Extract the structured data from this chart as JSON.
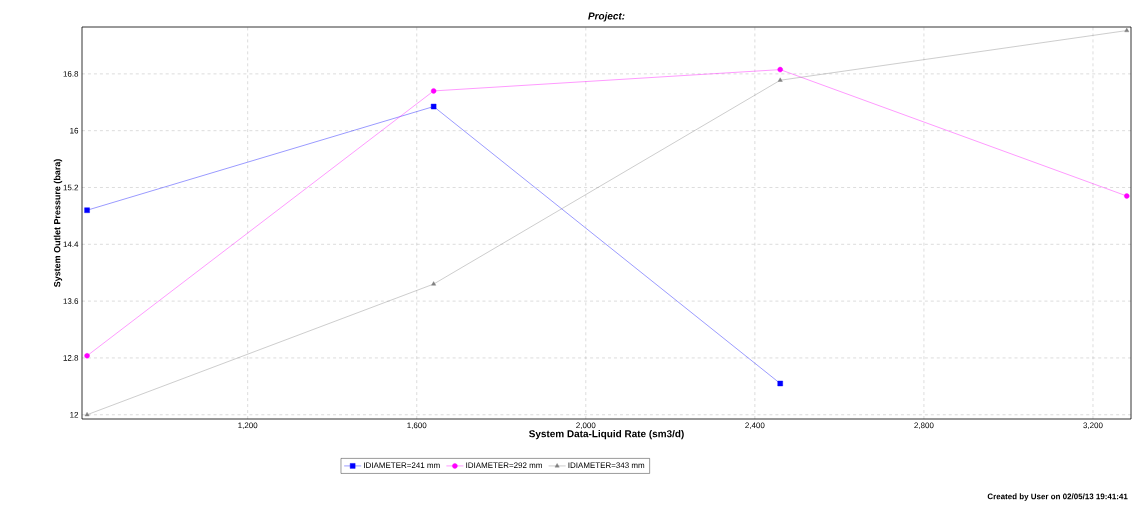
{
  "chart_data": {
    "type": "line",
    "title": "Project:",
    "xlabel": "System Data-Liquid Rate (sm3/d)",
    "ylabel": "System Outlet Pressure (bara)",
    "x": [
      820,
      1640,
      2460,
      3280
    ],
    "series": [
      {
        "name": "IDIAMETER=241 mm",
        "color": "#0000ff",
        "marker": "square",
        "values": [
          14.88,
          16.34,
          12.44,
          null
        ]
      },
      {
        "name": "IDIAMETER=292 mm",
        "color": "#ff00ff",
        "marker": "circle",
        "values": [
          12.83,
          16.56,
          16.86,
          15.08
        ]
      },
      {
        "name": "IDIAMETER=343 mm",
        "color": "#808080",
        "marker": "triangle",
        "values": [
          12.0,
          13.84,
          16.71,
          17.41
        ]
      }
    ],
    "xlim": [
      808,
      3290
    ],
    "ylim": [
      11.94,
      17.46
    ],
    "xticks": [
      {
        "value": 1200,
        "label": "1,200"
      },
      {
        "value": 1600,
        "label": "1,600"
      },
      {
        "value": 2000,
        "label": "2,000"
      },
      {
        "value": 2400,
        "label": "2,400"
      },
      {
        "value": 2800,
        "label": "2,800"
      },
      {
        "value": 3200,
        "label": "3,200"
      }
    ],
    "yticks": [
      12,
      12.8,
      13.6,
      14.4,
      15.2,
      16,
      16.8
    ],
    "grid": true,
    "legend": "bottom",
    "line_style": "solid",
    "annotations": [
      "Created by User on 02/05/13 19:41:41"
    ]
  }
}
